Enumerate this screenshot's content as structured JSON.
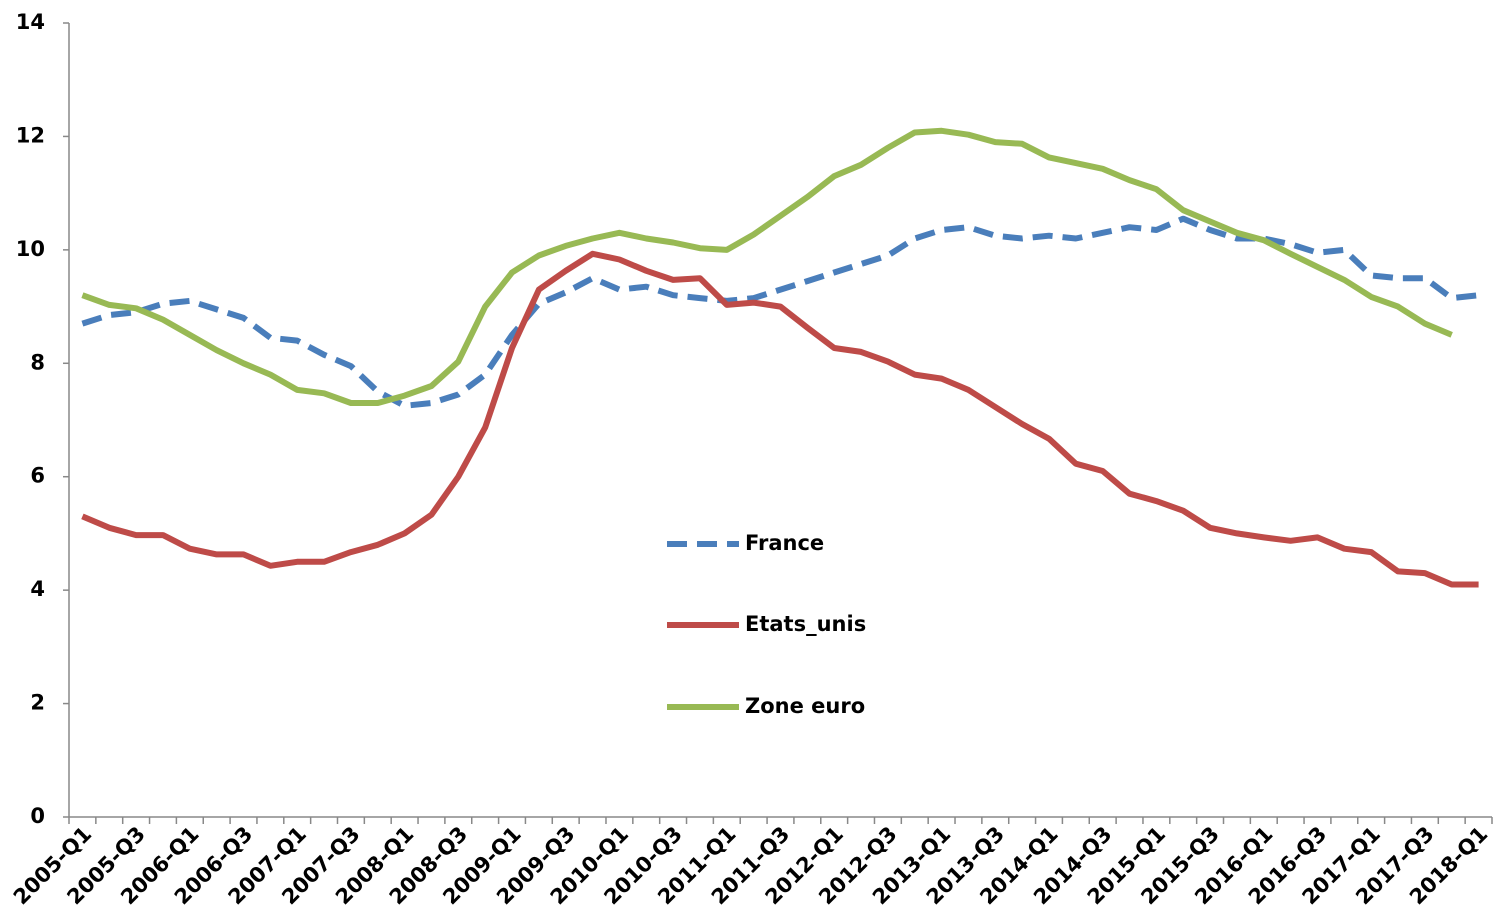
{
  "chart_data": {
    "type": "line",
    "categories": [
      "2005-Q1",
      null,
      "2005-Q3",
      null,
      "2006-Q1",
      null,
      "2006-Q3",
      null,
      "2007-Q1",
      null,
      "2007-Q3",
      null,
      "2008-Q1",
      null,
      "2008-Q3",
      null,
      "2009-Q1",
      null,
      "2009-Q3",
      null,
      "2010-Q1",
      null,
      "2010-Q3",
      null,
      "2011-Q1",
      null,
      "2011-Q3",
      null,
      "2012-Q1",
      null,
      "2012-Q3",
      null,
      "2013-Q1",
      null,
      "2013-Q3",
      null,
      "2014-Q1",
      null,
      "2014-Q3",
      null,
      "2015-Q1",
      null,
      "2015-Q3",
      null,
      "2016-Q1",
      null,
      "2016-Q3",
      null,
      "2017-Q1",
      null,
      "2017-Q3",
      null,
      "2018-Q1"
    ],
    "series": [
      {
        "name": "France",
        "color": "#4a7ebb",
        "dashed": true,
        "values": [
          8.7,
          8.85,
          8.9,
          9.05,
          9.1,
          8.95,
          8.8,
          8.45,
          8.4,
          8.15,
          7.95,
          7.5,
          7.25,
          7.3,
          7.45,
          7.8,
          8.5,
          9.05,
          9.25,
          9.5,
          9.3,
          9.35,
          9.2,
          9.15,
          9.1,
          9.15,
          9.3,
          9.45,
          9.6,
          9.75,
          9.9,
          10.2,
          10.35,
          10.4,
          10.25,
          10.2,
          10.25,
          10.2,
          10.3,
          10.4,
          10.35,
          10.55,
          10.35,
          10.2,
          10.2,
          10.1,
          9.95,
          10.0,
          9.55,
          9.5,
          9.5,
          9.15,
          9.2
        ]
      },
      {
        "name": "Etats_unis",
        "color": "#be4b48",
        "dashed": false,
        "values": [
          5.3,
          5.1,
          4.97,
          4.97,
          4.73,
          4.63,
          4.63,
          4.43,
          4.5,
          4.5,
          4.67,
          4.8,
          5.0,
          5.33,
          6.0,
          6.87,
          8.27,
          9.3,
          9.63,
          9.93,
          9.83,
          9.63,
          9.47,
          9.5,
          9.03,
          9.07,
          9.0,
          8.63,
          8.27,
          8.2,
          8.03,
          7.8,
          7.73,
          7.53,
          7.23,
          6.93,
          6.67,
          6.23,
          6.1,
          5.7,
          5.57,
          5.4,
          5.1,
          5.0,
          4.93,
          4.87,
          4.93,
          4.73,
          4.67,
          4.33,
          4.3,
          4.1,
          4.1
        ]
      },
      {
        "name": "Zone euro",
        "color": "#98b954",
        "dashed": false,
        "values": [
          9.2,
          9.03,
          8.97,
          8.77,
          8.5,
          8.23,
          8.0,
          7.8,
          7.53,
          7.47,
          7.3,
          7.3,
          7.43,
          7.6,
          8.03,
          9.0,
          9.6,
          9.9,
          10.07,
          10.2,
          10.3,
          10.2,
          10.13,
          10.03,
          10.0,
          10.27,
          10.6,
          10.93,
          11.3,
          11.5,
          11.8,
          12.07,
          12.1,
          12.03,
          11.9,
          11.87,
          11.63,
          11.53,
          11.43,
          11.23,
          11.07,
          10.7,
          10.5,
          10.3,
          10.17,
          9.93,
          9.7,
          9.47,
          9.17,
          9.0,
          8.7,
          8.5,
          null
        ]
      }
    ],
    "ylim": [
      0,
      14
    ],
    "yticks": [
      0,
      2,
      4,
      6,
      8,
      10,
      12,
      14
    ],
    "grid": false,
    "legend": "center"
  }
}
